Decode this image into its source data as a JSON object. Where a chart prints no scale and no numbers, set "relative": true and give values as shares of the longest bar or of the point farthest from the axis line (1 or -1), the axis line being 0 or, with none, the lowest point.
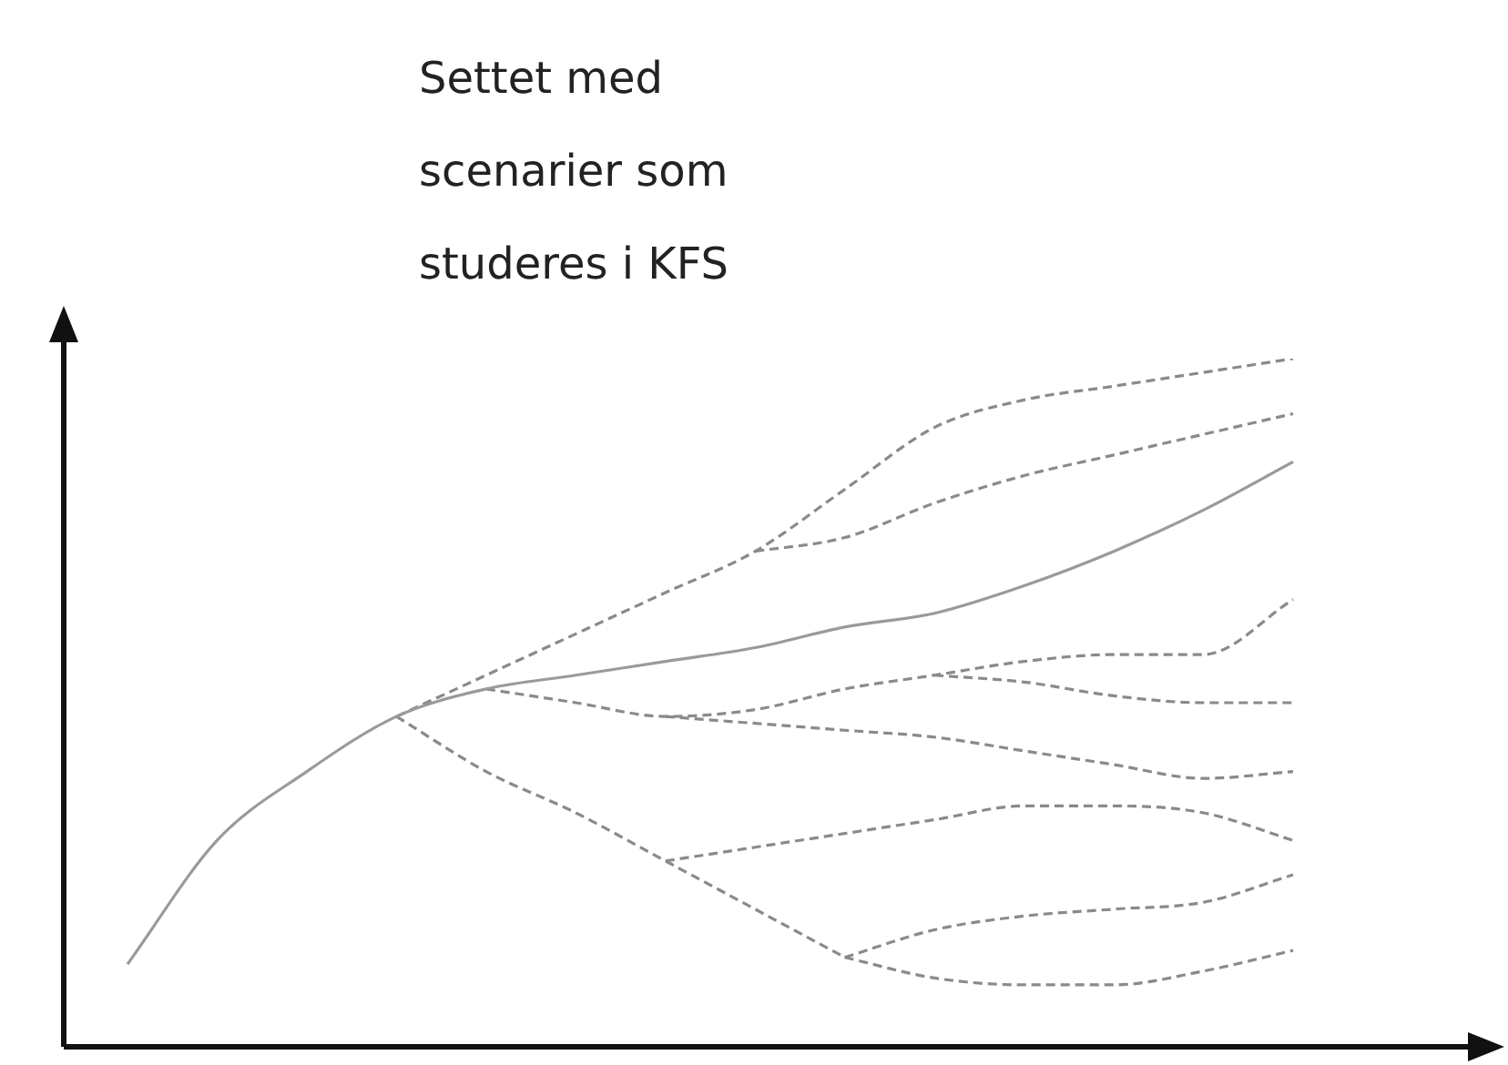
{
  "chart_data": {
    "type": "line",
    "title": "Settet med\nscenarier som\nstuderes i KFS",
    "relative": true,
    "marker": "none",
    "categories": [
      null,
      null,
      null,
      null,
      null,
      null,
      null,
      null,
      null,
      null,
      null,
      null,
      null,
      null
    ],
    "series": [
      {
        "color": "#9a9a9a",
        "line_style": "solid",
        "values": [
          0.12,
          0.3,
          0.4,
          0.48,
          0.52,
          0.54,
          0.56,
          0.58,
          0.61,
          0.63,
          0.67,
          0.72,
          0.78,
          0.85
        ]
      },
      {
        "color": "#8a8a8a",
        "line_style": "dashed",
        "values": [
          null,
          null,
          null,
          0.48,
          0.54,
          0.6,
          0.66,
          0.72,
          0.81,
          0.9,
          0.94,
          0.96,
          0.98,
          1
        ]
      },
      {
        "color": "#8a8a8a",
        "line_style": "dashed",
        "values": [
          null,
          null,
          null,
          null,
          null,
          null,
          null,
          0.72,
          0.74,
          0.79,
          0.83,
          0.86,
          0.89,
          0.92
        ]
      },
      {
        "color": "#8a8a8a",
        "line_style": "dashed",
        "values": [
          null,
          null,
          null,
          null,
          0.52,
          0.5,
          0.48,
          0.49,
          0.52,
          0.54,
          0.56,
          0.57,
          0.57,
          0.65
        ]
      },
      {
        "color": "#8a8a8a",
        "line_style": "dashed",
        "values": [
          null,
          null,
          null,
          null,
          null,
          null,
          null,
          null,
          null,
          0.54,
          0.53,
          0.51,
          0.5,
          0.5
        ]
      },
      {
        "color": "#8a8a8a",
        "line_style": "dashed",
        "values": [
          null,
          null,
          null,
          null,
          null,
          null,
          0.48,
          0.47,
          0.46,
          0.45,
          0.43,
          0.41,
          0.39,
          0.4
        ]
      },
      {
        "color": "#8a8a8a",
        "line_style": "dashed",
        "values": [
          null,
          null,
          null,
          0.48,
          0.4,
          0.34,
          0.27,
          0.2,
          0.13,
          null,
          null,
          null,
          null,
          null
        ]
      },
      {
        "color": "#8a8a8a",
        "line_style": "dashed",
        "values": [
          null,
          null,
          null,
          null,
          null,
          null,
          0.27,
          0.29,
          0.31,
          0.33,
          0.35,
          0.35,
          0.34,
          0.3
        ]
      },
      {
        "color": "#8a8a8a",
        "line_style": "dashed",
        "values": [
          null,
          null,
          null,
          null,
          null,
          null,
          null,
          null,
          0.13,
          0.17,
          0.19,
          0.2,
          0.21,
          0.25
        ]
      },
      {
        "color": "#8a8a8a",
        "line_style": "dashed",
        "values": [
          null,
          null,
          null,
          null,
          null,
          null,
          null,
          null,
          0.13,
          0.1,
          0.09,
          0.09,
          0.11,
          0.14
        ]
      }
    ]
  }
}
